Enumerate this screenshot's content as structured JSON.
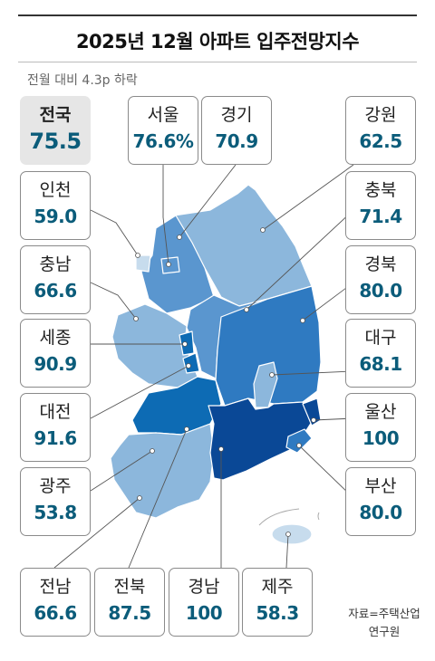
{
  "title": "2025년 12월 아파트 입주전망지수",
  "subtitle": "전월 대비 4.3p 하락",
  "source_line1": "자료=주택산업",
  "source_line2": "연구원",
  "colors": {
    "level1": "#c7dced",
    "level2": "#8cb7dc",
    "level3": "#5a96cf",
    "level4": "#2f7ac1",
    "level5": "#0d6bb4",
    "level6": "#0a4896",
    "value_text": "#0b5c7a"
  },
  "chart_data": {
    "type": "choropleth map",
    "title": "2025년 12월 아파트 입주전망지수",
    "subtitle": "전월 대비 4.3p 하락",
    "national": {
      "name": "전국",
      "value_label": "75.5",
      "value": 75.5
    },
    "regions": [
      {
        "key": "seoul",
        "name": "서울",
        "value_label": "76.6%",
        "value": 76.6
      },
      {
        "key": "gyeonggi",
        "name": "경기",
        "value_label": "70.9",
        "value": 70.9
      },
      {
        "key": "gangwon",
        "name": "강원",
        "value_label": "62.5",
        "value": 62.5
      },
      {
        "key": "incheon",
        "name": "인천",
        "value_label": "59.0",
        "value": 59.0
      },
      {
        "key": "chungbuk",
        "name": "충북",
        "value_label": "71.4",
        "value": 71.4
      },
      {
        "key": "chungnam",
        "name": "충남",
        "value_label": "66.6",
        "value": 66.6
      },
      {
        "key": "gyeongbuk",
        "name": "경북",
        "value_label": "80.0",
        "value": 80.0
      },
      {
        "key": "sejong",
        "name": "세종",
        "value_label": "90.9",
        "value": 90.9
      },
      {
        "key": "daegu",
        "name": "대구",
        "value_label": "68.1",
        "value": 68.1
      },
      {
        "key": "daejeon",
        "name": "대전",
        "value_label": "91.6",
        "value": 91.6
      },
      {
        "key": "ulsan",
        "name": "울산",
        "value_label": "100",
        "value": 100
      },
      {
        "key": "gwangju",
        "name": "광주",
        "value_label": "53.8",
        "value": 53.8
      },
      {
        "key": "busan",
        "name": "부산",
        "value_label": "80.0",
        "value": 80.0
      },
      {
        "key": "jeonnam",
        "name": "전남",
        "value_label": "66.6",
        "value": 66.6
      },
      {
        "key": "jeonbuk",
        "name": "전북",
        "value_label": "87.5",
        "value": 87.5
      },
      {
        "key": "gyeongnam",
        "name": "경남",
        "value_label": "100",
        "value": 100
      },
      {
        "key": "jeju",
        "name": "제주",
        "value_label": "58.3",
        "value": 58.3
      }
    ]
  }
}
